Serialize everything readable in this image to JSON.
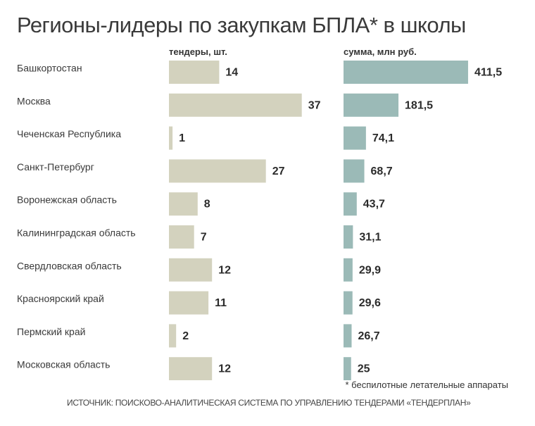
{
  "title": "Регионы-лидеры по закупкам БПЛА* в школы",
  "footnote": "* беспилотные летательные аппараты",
  "source": "ИСТОЧНИК: ПОИСКОВО-АНАЛИТИЧЕСКАЯ СИСТЕМА ПО УПРАВЛЕНИЮ ТЕНДЕРАМИ «ТЕНДЕРПЛАН»",
  "colors": {
    "tenders_bar": "#d3d2be",
    "sum_bar": "#9bbab7"
  },
  "chart_data": {
    "type": "bar",
    "orientation": "horizontal",
    "categories": [
      "Башкортостан",
      "Москва",
      "Чеченская Республика",
      "Санкт-Петербург",
      "Воронежская область",
      "Калининградская область",
      "Свердловская область",
      "Красноярский край",
      "Пермский край",
      "Московская область"
    ],
    "series": [
      {
        "name": "тендеры, шт.",
        "values": [
          14,
          37,
          1,
          27,
          8,
          7,
          12,
          11,
          2,
          12
        ],
        "labels": [
          "14",
          "37",
          "1",
          "27",
          "8",
          "7",
          "12",
          "11",
          "2",
          "12"
        ]
      },
      {
        "name": "сумма, млн руб.",
        "values": [
          411.5,
          181.5,
          74.1,
          68.7,
          43.7,
          31.1,
          29.9,
          29.6,
          26.7,
          25
        ],
        "labels": [
          "411,5",
          "181,5",
          "74,1",
          "68,7",
          "43,7",
          "31,1",
          "29,9",
          "29,6",
          "26,7",
          "25"
        ]
      }
    ]
  }
}
